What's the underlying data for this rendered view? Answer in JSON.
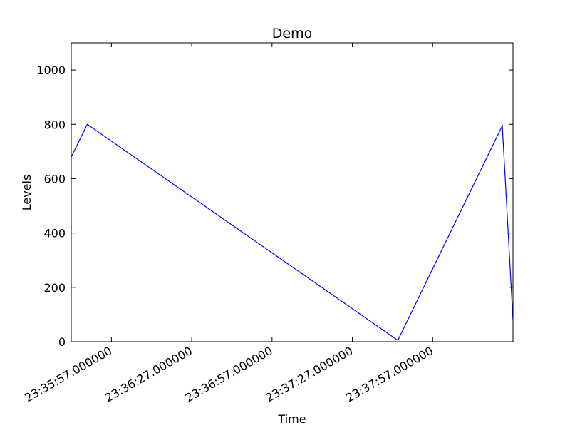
{
  "chart_data": {
    "type": "line",
    "title": "Demo",
    "xlabel": "Time",
    "ylabel": "Levels",
    "ylim": [
      0,
      1100
    ],
    "xlim": [
      "23:35:42.000000",
      "23:38:27.000000"
    ],
    "yticks": [
      0,
      200,
      400,
      600,
      800,
      1000
    ],
    "xticks": [
      "23:35:57.000000",
      "23:36:27.000000",
      "23:36:57.000000",
      "23:37:27.000000",
      "23:37:57.000000"
    ],
    "grid": false,
    "color": "#0000ff",
    "series": [
      {
        "x": [
          "23:35:42.000000",
          "23:35:48.000000",
          "23:37:44.000000",
          "23:38:23.000000",
          "23:38:27.000000"
        ],
        "y": [
          680,
          800,
          5,
          795,
          80
        ]
      }
    ]
  }
}
